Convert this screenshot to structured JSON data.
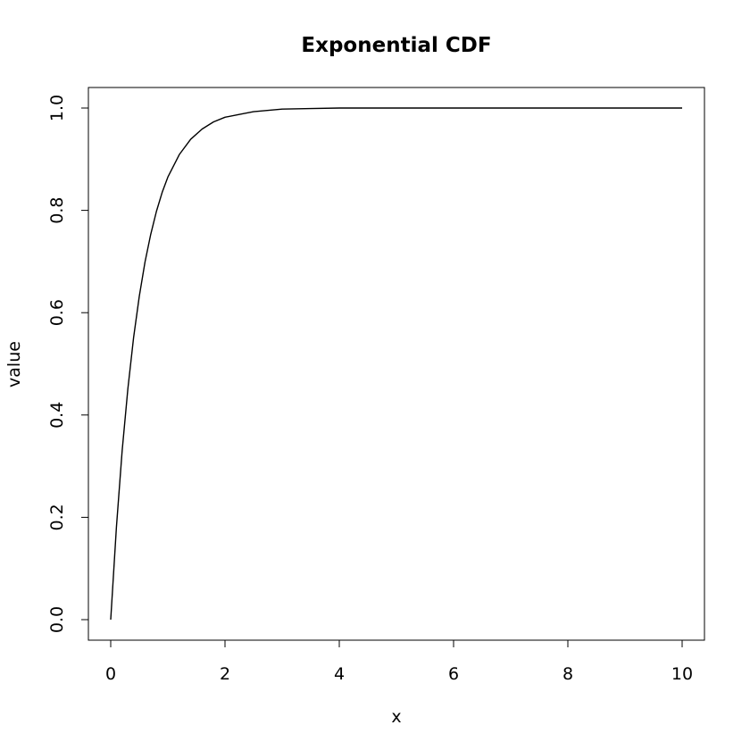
{
  "chart_data": {
    "type": "line",
    "title": "Exponential CDF",
    "xlabel": "x",
    "ylabel": "value",
    "xlim": [
      0,
      10
    ],
    "ylim": [
      0,
      1
    ],
    "x_ticks": [
      0,
      2,
      4,
      6,
      8,
      10
    ],
    "y_ticks": [
      0.0,
      0.2,
      0.4,
      0.6,
      0.8,
      1.0
    ],
    "x_tick_labels": [
      "0",
      "2",
      "4",
      "6",
      "8",
      "10"
    ],
    "y_tick_labels": [
      "0.0",
      "0.2",
      "0.4",
      "0.6",
      "0.8",
      "1.0"
    ],
    "grid": false,
    "legend": "none",
    "line_color": "#000000",
    "series": [
      {
        "x": [
          0,
          0.1,
          0.2,
          0.3,
          0.4,
          0.5,
          0.6,
          0.7,
          0.8,
          0.9,
          1.0,
          1.2,
          1.4,
          1.6,
          1.8,
          2.0,
          2.5,
          3.0,
          3.5,
          4.0,
          5.0,
          6.0,
          7.0,
          8.0,
          9.0,
          10.0
        ],
        "y": [
          0.0,
          0.181,
          0.33,
          0.451,
          0.551,
          0.632,
          0.699,
          0.753,
          0.798,
          0.835,
          0.865,
          0.909,
          0.939,
          0.959,
          0.973,
          0.982,
          0.993,
          0.998,
          0.999,
          1.0,
          1.0,
          1.0,
          1.0,
          1.0,
          1.0,
          1.0
        ]
      }
    ]
  }
}
